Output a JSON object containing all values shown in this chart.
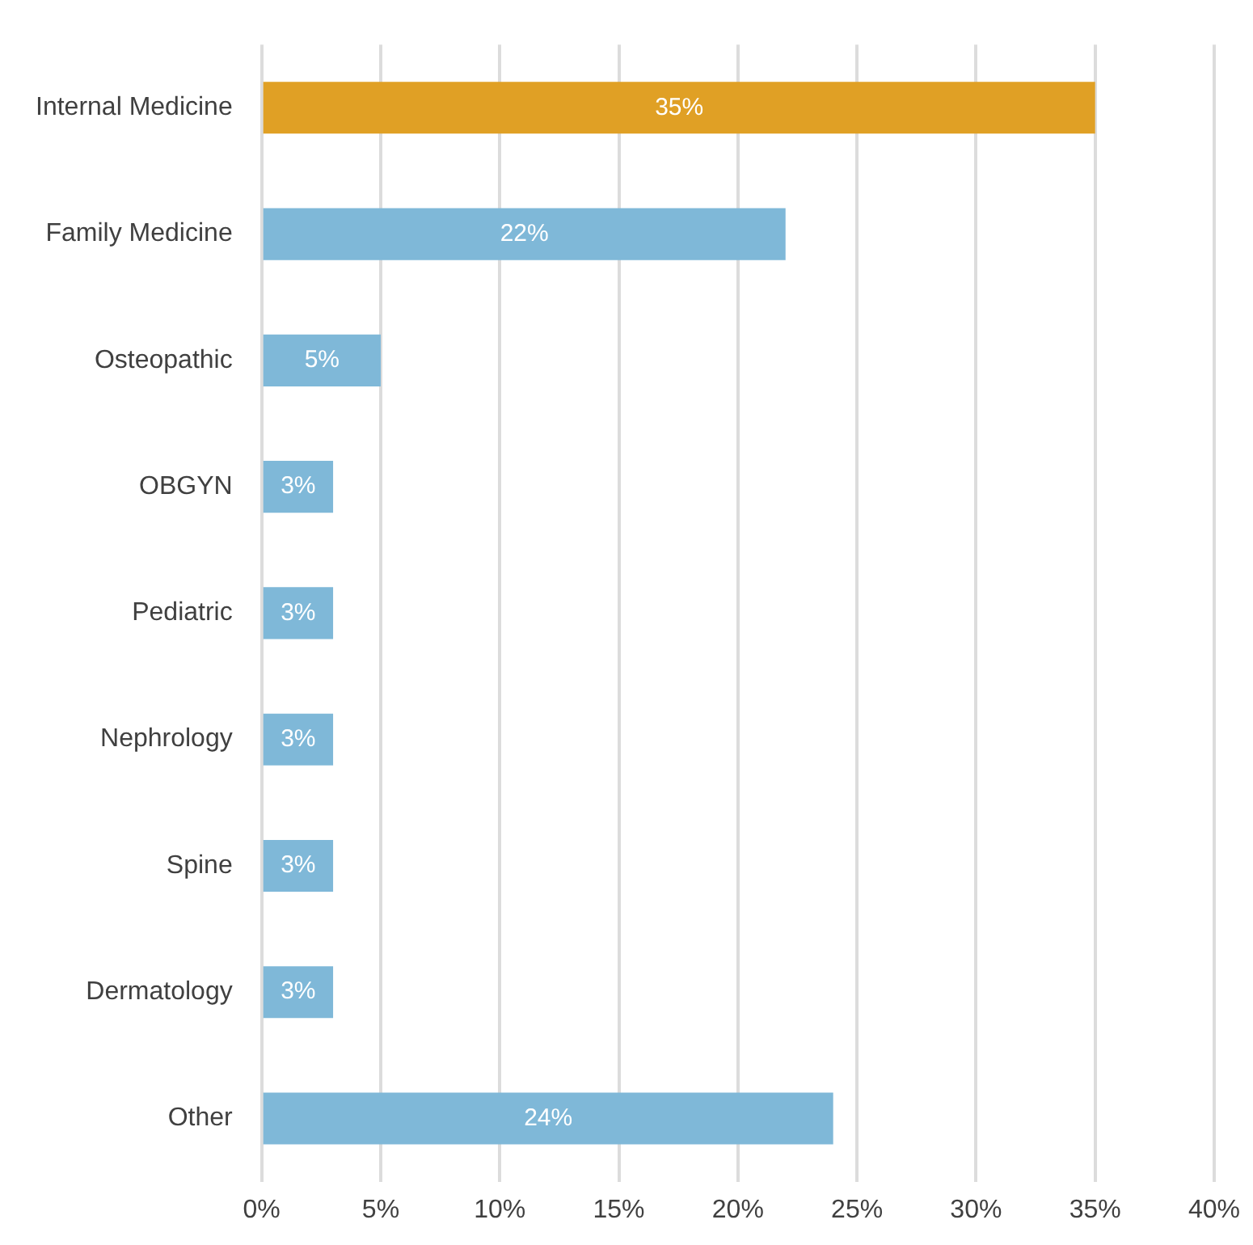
{
  "chart_data": {
    "type": "bar",
    "orientation": "horizontal",
    "categories": [
      "Internal Medicine",
      "Family Medicine",
      "Osteopathic",
      "OBGYN",
      "Pediatric",
      "Nephrology",
      "Spine",
      "Dermatology",
      "Other"
    ],
    "values": [
      35,
      22,
      5,
      3,
      3,
      3,
      3,
      3,
      24
    ],
    "colors": [
      "#e0a025",
      "#7fb8d8",
      "#7fb8d8",
      "#7fb8d8",
      "#7fb8d8",
      "#7fb8d8",
      "#7fb8d8",
      "#7fb8d8",
      "#7fb8d8"
    ],
    "value_labels": [
      "35%",
      "22%",
      "5%",
      "3%",
      "3%",
      "3%",
      "3%",
      "3%",
      "24%"
    ],
    "xlim": [
      0,
      40
    ],
    "xticks": [
      {
        "value": 0,
        "label": "0%"
      },
      {
        "value": 5,
        "label": "5%"
      },
      {
        "value": 10,
        "label": "10%"
      },
      {
        "value": 15,
        "label": "15%"
      },
      {
        "value": 20,
        "label": "20%"
      },
      {
        "value": 25,
        "label": "25%"
      },
      {
        "value": 30,
        "label": "30%"
      },
      {
        "value": 35,
        "label": "35%"
      },
      {
        "value": 40,
        "label": "40%"
      }
    ],
    "grid": "x",
    "legend": false
  }
}
